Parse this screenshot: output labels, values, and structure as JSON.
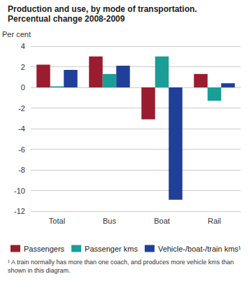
{
  "chart_data": {
    "type": "bar",
    "title": "Production and use, by mode of transportation.",
    "subtitle": "Percentual change 2008-2009",
    "y_label": "Per cent",
    "categories": [
      "Total",
      "Bus",
      "Boat",
      "Rail"
    ],
    "series": [
      {
        "name": "Passengers",
        "color": "#9b1c2e",
        "values": [
          2.2,
          3.0,
          -3.1,
          1.3
        ]
      },
      {
        "name": "Passenger kms",
        "color": "#1a9e96",
        "values": [
          0.1,
          1.3,
          3.0,
          -1.3
        ]
      },
      {
        "name": "Vehicle-/boat-/train kms¹",
        "color": "#1f3f99",
        "values": [
          1.7,
          2.1,
          -10.9,
          0.4
        ]
      }
    ],
    "ylim": [
      -12,
      4
    ],
    "yticks": [
      -12,
      -10,
      -8,
      -6,
      -4,
      -2,
      0,
      2,
      4
    ],
    "grid": true,
    "legend": "bottom",
    "annotations": [
      "¹ A train normally has more than one coach, and produces more vehicle kms than shown in this diagram."
    ]
  }
}
